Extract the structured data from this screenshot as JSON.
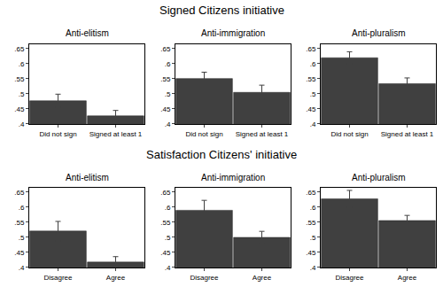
{
  "chart_data": [
    {
      "type": "bar",
      "title": "Signed Citizens initiative",
      "categories": [
        "Did not sign",
        "Signed at least 1"
      ],
      "color": "#404040",
      "grid": false,
      "ylim": [
        0.4,
        0.665
      ],
      "yticks": [
        {
          "value": 0.4,
          "label": ".4"
        },
        {
          "value": 0.45,
          "label": ".45"
        },
        {
          "value": 0.5,
          "label": ".5"
        },
        {
          "value": 0.55,
          "label": ".55"
        },
        {
          "value": 0.6,
          "label": ".6"
        },
        {
          "value": 0.65,
          "label": ".65"
        }
      ],
      "panels": [
        {
          "title": "Anti-elitism",
          "values": [
            0.477,
            0.427
          ],
          "errors": [
            0.022,
            0.018
          ]
        },
        {
          "title": "Anti-immigration",
          "values": [
            0.551,
            0.505
          ],
          "errors": [
            0.021,
            0.024
          ]
        },
        {
          "title": "Anti-pluralism",
          "values": [
            0.62,
            0.534
          ],
          "errors": [
            0.02,
            0.019
          ]
        }
      ]
    },
    {
      "type": "bar",
      "title": "Satisfaction Citizens' initiative",
      "categories": [
        "Disagree",
        "Agree"
      ],
      "color": "#404040",
      "grid": false,
      "ylim": [
        0.4,
        0.665
      ],
      "yticks": [
        {
          "value": 0.4,
          "label": ".4"
        },
        {
          "value": 0.45,
          "label": ".45"
        },
        {
          "value": 0.5,
          "label": ".5"
        },
        {
          "value": 0.55,
          "label": ".55"
        },
        {
          "value": 0.6,
          "label": ".6"
        },
        {
          "value": 0.65,
          "label": ".65"
        }
      ],
      "panels": [
        {
          "title": "Anti-elitism",
          "values": [
            0.521,
            0.418
          ],
          "errors": [
            0.032,
            0.018
          ]
        },
        {
          "title": "Anti-immigration",
          "values": [
            0.59,
            0.5
          ],
          "errors": [
            0.033,
            0.02
          ]
        },
        {
          "title": "Anti-pluralism",
          "values": [
            0.628,
            0.556
          ],
          "errors": [
            0.028,
            0.017
          ]
        }
      ]
    }
  ]
}
